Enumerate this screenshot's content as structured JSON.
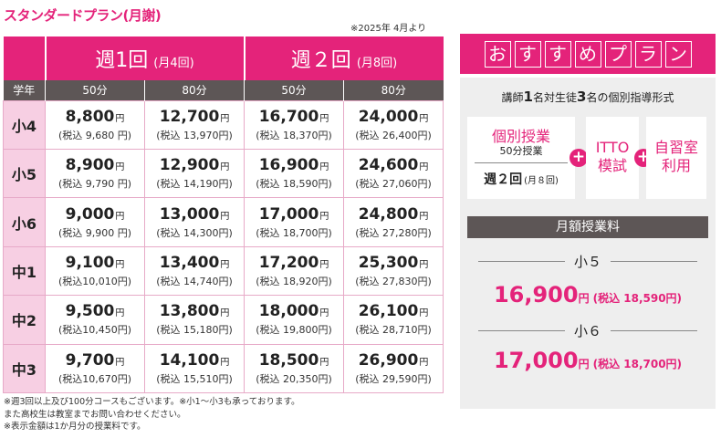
{
  "title": "スタンダードプラン(月謝)",
  "effective": "※2025年 4月より",
  "header": {
    "groups": [
      {
        "label": "週1回",
        "sub": "(月4回)"
      },
      {
        "label": "週２回",
        "sub": "(月8回)"
      }
    ],
    "grade_label": "学年",
    "durations": [
      "50分",
      "80分",
      "50分",
      "80分"
    ]
  },
  "yen": "円",
  "rows": [
    {
      "grade": "小4",
      "cells": [
        {
          "price": "8,800",
          "tax": "(税込 9,680 円)"
        },
        {
          "price": "12,700",
          "tax": "(税込 13,970円)"
        },
        {
          "price": "16,700",
          "tax": "(税込 18,370円)"
        },
        {
          "price": "24,000",
          "tax": "(税込 26,400円)"
        }
      ]
    },
    {
      "grade": "小5",
      "cells": [
        {
          "price": "8,900",
          "tax": "(税込 9,790 円)"
        },
        {
          "price": "12,900",
          "tax": "(税込 14,190円)"
        },
        {
          "price": "16,900",
          "tax": "(税込 18,590円)"
        },
        {
          "price": "24,600",
          "tax": "(税込 27,060円)"
        }
      ]
    },
    {
      "grade": "小6",
      "cells": [
        {
          "price": "9,000",
          "tax": "(税込 9,900 円)"
        },
        {
          "price": "13,000",
          "tax": "(税込 14,300円)"
        },
        {
          "price": "17,000",
          "tax": "(税込 18,700円)"
        },
        {
          "price": "24,800",
          "tax": "(税込 27,280円)"
        }
      ]
    },
    {
      "grade": "中1",
      "cells": [
        {
          "price": "9,100",
          "tax": "(税込10,010円)"
        },
        {
          "price": "13,400",
          "tax": "(税込 14,740円)"
        },
        {
          "price": "17,200",
          "tax": "(税込 18,920円)"
        },
        {
          "price": "25,300",
          "tax": "(税込 27,830円)"
        }
      ]
    },
    {
      "grade": "中2",
      "cells": [
        {
          "price": "9,500",
          "tax": "(税込10,450円)"
        },
        {
          "price": "13,800",
          "tax": "(税込 15,180円)"
        },
        {
          "price": "18,000",
          "tax": "(税込 19,800円)"
        },
        {
          "price": "26,100",
          "tax": "(税込 28,710円)"
        }
      ]
    },
    {
      "grade": "中3",
      "cells": [
        {
          "price": "9,700",
          "tax": "(税込10,670円)"
        },
        {
          "price": "14,100",
          "tax": "(税込 15,510円)"
        },
        {
          "price": "18,500",
          "tax": "(税込 20,350円)"
        },
        {
          "price": "26,900",
          "tax": "(税込 29,590円)"
        }
      ]
    }
  ],
  "notes": [
    "※週3回以上及び100分コースもございます。※小1～小3も承っております。",
    "また高校生は教室までお問い合わせください。",
    "※表示金額は1か月分の授業料です。"
  ],
  "recommend": {
    "banner_chars": [
      "お",
      "す",
      "す",
      "め",
      "プ",
      "ラ",
      "ン"
    ],
    "subtitle_parts": [
      "講師",
      "1",
      "名対生徒",
      "3",
      "名の個別指導形式"
    ],
    "box1": {
      "title": "個別授業",
      "sub": "50分授業",
      "freq": "週２回",
      "freq_sub": "(月８回)"
    },
    "box2": [
      "ITTO",
      "模試"
    ],
    "box3": [
      "自習室",
      "利用"
    ],
    "plus": "+",
    "fee_header": "月額授業料",
    "fees": [
      {
        "grade": "小５",
        "price": "16,900",
        "yen": "円",
        "tax": "(税込 18,590円)"
      },
      {
        "grade": "小６",
        "price": "17,000",
        "yen": "円",
        "tax": "(税込 18,700円)"
      }
    ]
  },
  "colors": {
    "accent": "#e4237a",
    "header_dark": "#5d5656",
    "grade_bg": "#f7cfe3",
    "panel_bg": "#eeeeee"
  }
}
